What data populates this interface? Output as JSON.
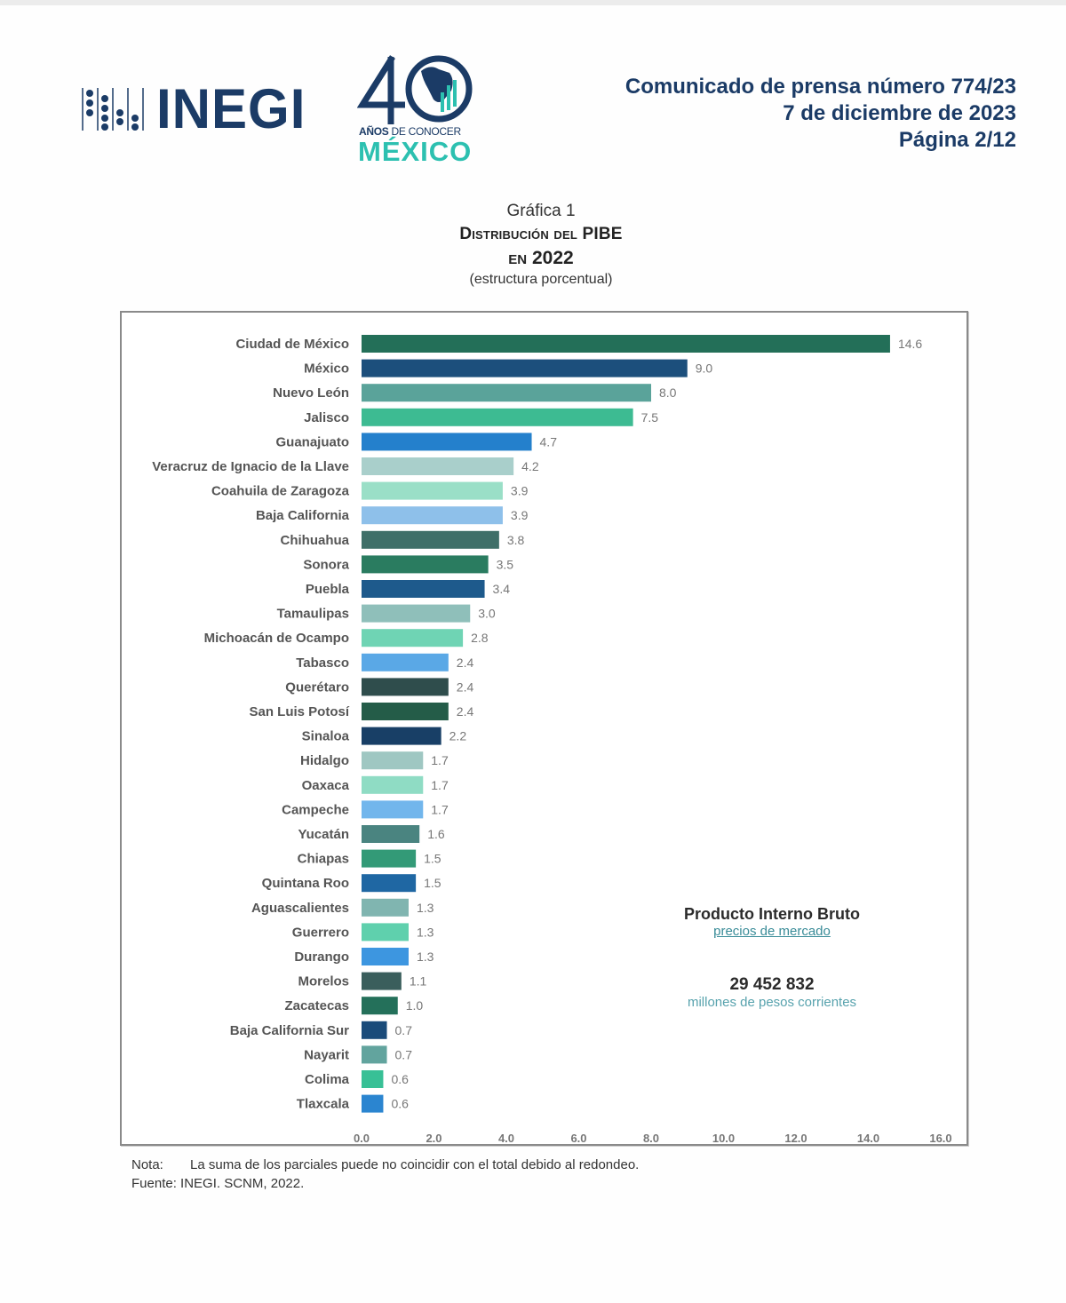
{
  "header": {
    "org_name": "INEGI",
    "anniversary_number": "40",
    "anniversary_line1_bold": "AÑOS",
    "anniversary_line1_rest": " DE CONOCER",
    "anniversary_line2": "MÉXICO",
    "press_release": "Comunicado de prensa número 774/23",
    "date": "7 de diciembre de 2023",
    "page": "Página 2/12"
  },
  "chart_heading": {
    "label": "Gráfica 1",
    "title_line1": "Distribución del PIBE",
    "title_line2": "en 2022",
    "subtitle": "(estructura porcentual)"
  },
  "chart_data": {
    "type": "bar",
    "orientation": "horizontal",
    "title": "Distribución del PIBE en 2022",
    "subtitle": "(estructura porcentual)",
    "xlabel": "",
    "ylabel": "",
    "xlim": [
      0,
      16
    ],
    "x_ticks": [
      "0.0",
      "2.0",
      "4.0",
      "6.0",
      "8.0",
      "10.0",
      "12.0",
      "14.0",
      "16.0"
    ],
    "grid": false,
    "categories": [
      "Ciudad de México",
      "México",
      "Nuevo León",
      "Jalisco",
      "Guanajuato",
      "Veracruz de Ignacio de la Llave",
      "Coahuila de Zaragoza",
      "Baja California",
      "Chihuahua",
      "Sonora",
      "Puebla",
      "Tamaulipas",
      "Michoacán de Ocampo",
      "Tabasco",
      "Querétaro",
      "San Luis Potosí",
      "Sinaloa",
      "Hidalgo",
      "Oaxaca",
      "Campeche",
      "Yucatán",
      "Chiapas",
      "Quintana Roo",
      "Aguascalientes",
      "Guerrero",
      "Durango",
      "Morelos",
      "Zacatecas",
      "Baja California Sur",
      "Nayarit",
      "Colima",
      "Tlaxcala"
    ],
    "values": [
      14.6,
      9.0,
      8.0,
      7.5,
      4.7,
      4.2,
      3.9,
      3.9,
      3.8,
      3.5,
      3.4,
      3.0,
      2.8,
      2.4,
      2.4,
      2.4,
      2.2,
      1.7,
      1.7,
      1.7,
      1.6,
      1.5,
      1.5,
      1.3,
      1.3,
      1.3,
      1.1,
      1.0,
      0.7,
      0.7,
      0.6,
      0.6
    ],
    "value_labels": [
      "14.6",
      "9.0",
      "8.0",
      "7.5",
      "4.7",
      "4.2",
      "3.9",
      "3.9",
      "3.8",
      "3.5",
      "3.4",
      "3.0",
      "2.8",
      "2.4",
      "2.4",
      "2.4",
      "2.2",
      "1.7",
      "1.7",
      "1.7",
      "1.6",
      "1.5",
      "1.5",
      "1.3",
      "1.3",
      "1.3",
      "1.1",
      "1.0",
      "0.7",
      "0.7",
      "0.6",
      "0.6"
    ],
    "colors": [
      "#236f58",
      "#1c4f7c",
      "#5aa39a",
      "#3dbb92",
      "#2480cc",
      "#a9cfcb",
      "#9adfc7",
      "#8ec0ea",
      "#3f6f68",
      "#2a7c60",
      "#1e5a8c",
      "#8fbfba",
      "#6fd4b4",
      "#5aa8e6",
      "#2f4d4c",
      "#245c48",
      "#183f66",
      "#9fc7c2",
      "#8fdcc4",
      "#72b6ec",
      "#4a8480",
      "#339a77",
      "#1f67a3",
      "#80b5b0",
      "#5fd0ad",
      "#3d96e0",
      "#3a5e5c",
      "#24705a",
      "#1a4b7a",
      "#62a49e",
      "#38c096",
      "#2b85d0"
    ]
  },
  "annotation": {
    "title": "Producto Interno Bruto",
    "subtitle": "precios de mercado",
    "value": "29 452 832",
    "unit": "millones de pesos corrientes"
  },
  "notes": {
    "note_key": "Nota:",
    "note_text": "La suma de los parciales puede no coincidir con el total debido al redondeo.",
    "source_key": "Fuente:",
    "source_text": "INEGI. SCNM, 2022."
  },
  "colors": {
    "brand_navy": "#1b3b66",
    "brand_teal": "#2cc0b0"
  }
}
